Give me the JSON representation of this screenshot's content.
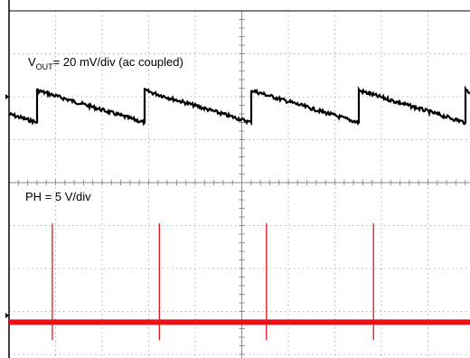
{
  "chart_data": {
    "type": "line",
    "title": "",
    "grid": true,
    "divisions": {
      "x": 10,
      "y": 8
    },
    "series": [
      {
        "name": "",
        "label": {
          "main": "V",
          "subscript": "OUT",
          "rest": "= 20 mV/div (ac coupled)"
        },
        "color": "#000000",
        "waveform": "sawtooth ripple",
        "scale": "20 mV/div",
        "coupling": "ac",
        "period_div": 2.3,
        "first_step_div": 0.6,
        "step_height_div": 0.75,
        "baseline_div": 2.6
      },
      {
        "name": "",
        "label": {
          "main": "PH = 5 V/div",
          "subscript": "",
          "rest": ""
        },
        "color": "#e8121a",
        "waveform": "pulse train",
        "scale": "5 V/div",
        "period_div": 2.3,
        "first_pulse_div": 0.6,
        "pulse_height_div": 2.3,
        "baseline_div": 7.25
      }
    ]
  }
}
